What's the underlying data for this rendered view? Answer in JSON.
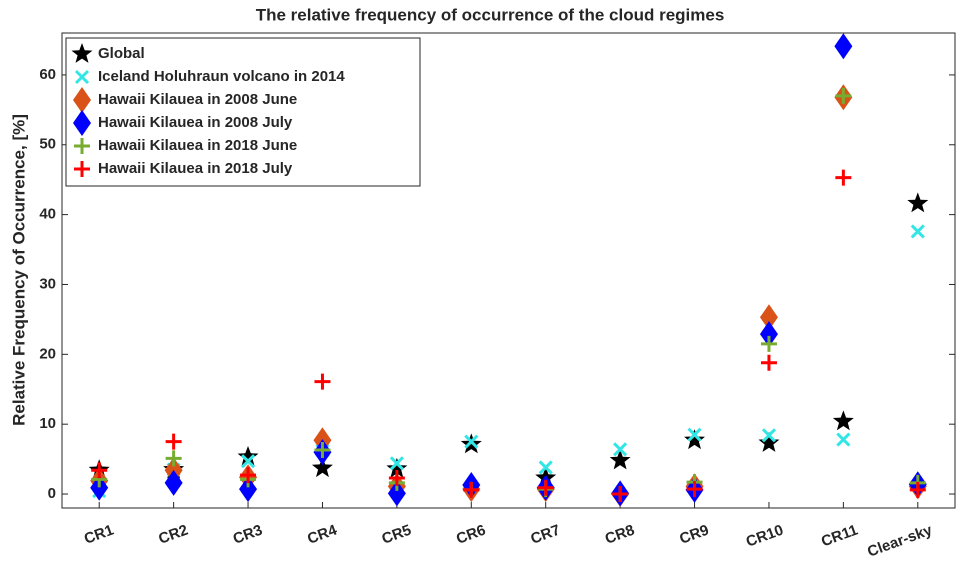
{
  "chart_data": {
    "type": "scatter",
    "title": "The relative frequency of occurrence of the cloud regimes",
    "ylabel": "Relative Frequency of Occurrence, [%]",
    "categories": [
      "CR1",
      "CR2",
      "CR3",
      "CR4",
      "CR5",
      "CR6",
      "CR7",
      "CR8",
      "CR9",
      "CR10",
      "CR11",
      "Clear-sky"
    ],
    "ylim": [
      -2,
      66
    ],
    "yticks": [
      0,
      10,
      20,
      30,
      40,
      50,
      60
    ],
    "grid": false,
    "legend": "upper-left",
    "series": [
      {
        "name": "Global",
        "color": "#000000",
        "marker": "star",
        "values": [
          3.4,
          3.5,
          5.3,
          3.7,
          3.6,
          7.1,
          2.3,
          4.8,
          7.7,
          7.3,
          10.4,
          41.6
        ]
      },
      {
        "name": "Iceland Holuhraun volcano in 2014",
        "color": "#33e6e6",
        "marker": "x",
        "values": [
          0.4,
          3.5,
          4.7,
          6.2,
          4.4,
          7.5,
          3.8,
          6.4,
          8.5,
          8.4,
          7.8,
          37.6
        ]
      },
      {
        "name": "Hawaii Kilauea in 2008 June",
        "color": "#d95319",
        "marker": "diamond",
        "values": [
          1.9,
          3.4,
          2.4,
          7.7,
          1.1,
          0.7,
          0.7,
          0,
          1.1,
          25.3,
          56.8,
          1.1
        ]
      },
      {
        "name": "Hawaii Kilauea in 2008 July",
        "color": "#0000ff",
        "marker": "diamond",
        "values": [
          0.9,
          1.6,
          0.7,
          6.0,
          0.1,
          1.3,
          0.9,
          0.1,
          0.6,
          22.9,
          64.1,
          1.4
        ]
      },
      {
        "name": "Hawaii Kilauea in 2018 June",
        "color": "#77ac30",
        "marker": "plus",
        "values": [
          2.1,
          5.1,
          2.1,
          6.3,
          1.6,
          0.6,
          0.7,
          0,
          1.7,
          21.5,
          57,
          1.6
        ]
      },
      {
        "name": "Hawaii Kilauea in 2018 July",
        "color": "#ff0000",
        "marker": "plus",
        "values": [
          3.4,
          7.5,
          2.7,
          16.1,
          2.3,
          0.6,
          0.9,
          0,
          0.7,
          18.8,
          45.3,
          0.6
        ]
      }
    ]
  }
}
